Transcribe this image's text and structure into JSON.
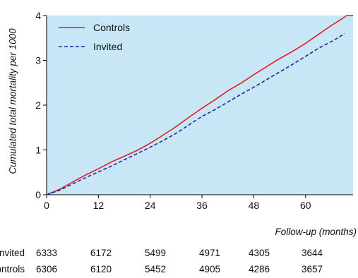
{
  "chart_data": {
    "type": "line",
    "xlabel": "Follow-up (months)",
    "ylabel": "Cumulated total mortality per 1000",
    "xlim": [
      0,
      71
    ],
    "ylim": [
      0,
      4
    ],
    "x_ticks": [
      "0",
      "12",
      "24",
      "36",
      "48",
      "60"
    ],
    "y_ticks": [
      "0",
      "1",
      "2",
      "3",
      "4"
    ],
    "grid": false,
    "legend_position": "top-left",
    "background_color": "#c8e6f5",
    "series": [
      {
        "name": "Controls",
        "color": "#e02020",
        "style": "solid",
        "x": [
          0,
          3,
          6,
          9,
          12,
          15,
          18,
          21,
          24,
          27,
          30,
          33,
          36,
          39,
          42,
          45,
          48,
          51,
          54,
          57,
          60,
          63,
          66,
          68,
          69,
          69.5
        ],
        "y": [
          0,
          0.12,
          0.28,
          0.44,
          0.58,
          0.73,
          0.86,
          0.99,
          1.15,
          1.33,
          1.52,
          1.73,
          1.93,
          2.12,
          2.32,
          2.49,
          2.68,
          2.86,
          3.04,
          3.2,
          3.38,
          3.58,
          3.78,
          3.9,
          3.96,
          4.0
        ]
      },
      {
        "name": "Invited",
        "color": "#1a2a9a",
        "style": "dashed",
        "x": [
          0,
          3,
          6,
          9,
          12,
          15,
          18,
          21,
          24,
          27,
          30,
          33,
          36,
          39,
          42,
          45,
          48,
          51,
          54,
          57,
          60,
          63,
          66,
          68,
          69
        ],
        "y": [
          0,
          0.1,
          0.24,
          0.38,
          0.51,
          0.64,
          0.78,
          0.92,
          1.06,
          1.21,
          1.37,
          1.56,
          1.75,
          1.9,
          2.07,
          2.24,
          2.4,
          2.57,
          2.74,
          2.91,
          3.09,
          3.27,
          3.42,
          3.53,
          3.6
        ]
      }
    ],
    "number_at_risk": [
      {
        "label": "Invited",
        "values": [
          "6333",
          "6172",
          "5499",
          "4971",
          "4305",
          "3644"
        ]
      },
      {
        "label": "Controls",
        "values": [
          "6306",
          "6120",
          "5452",
          "4905",
          "4286",
          "3657"
        ]
      }
    ]
  }
}
